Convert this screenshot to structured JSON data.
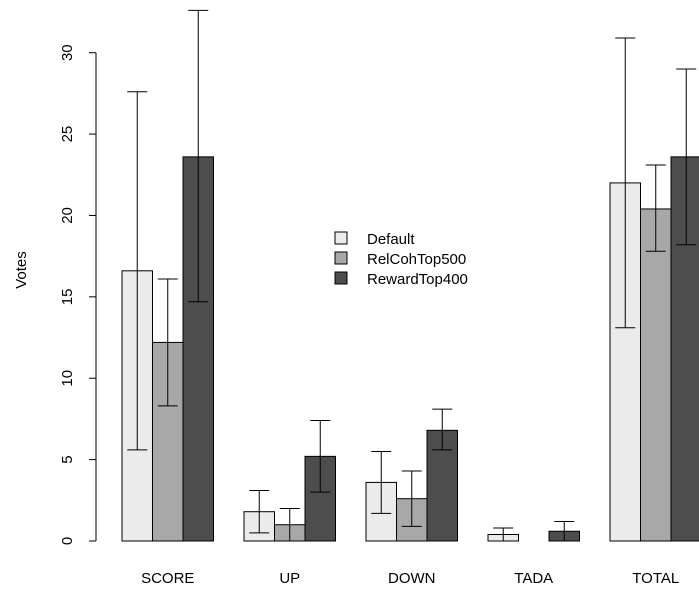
{
  "chart_data": {
    "type": "bar",
    "title": "",
    "xlabel": "",
    "ylabel": "Votes",
    "ylim": [
      0,
      32.5
    ],
    "yticks": [
      0,
      5,
      10,
      15,
      20,
      25,
      30
    ],
    "categories": [
      "SCORE",
      "UP",
      "DOWN",
      "TADA",
      "TOTAL"
    ],
    "series": [
      {
        "name": "Default",
        "color": "#ebebeb",
        "values": [
          16.6,
          1.8,
          3.6,
          0.4,
          22.0
        ],
        "err_low": [
          5.6,
          0.5,
          1.7,
          0.0,
          13.1
        ],
        "err_high": [
          27.6,
          3.1,
          5.5,
          0.8,
          30.9
        ]
      },
      {
        "name": "RelCohTop500",
        "color": "#a8a8a8",
        "values": [
          12.2,
          1.0,
          2.6,
          0.0,
          20.4
        ],
        "err_low": [
          8.3,
          0.0,
          0.9,
          0.0,
          17.8
        ],
        "err_high": [
          16.1,
          2.0,
          4.3,
          0.0,
          23.1
        ]
      },
      {
        "name": "RewardTop400",
        "color": "#4d4d4d",
        "values": [
          23.6,
          5.2,
          6.8,
          0.6,
          23.6
        ],
        "err_low": [
          14.7,
          3.0,
          5.6,
          0.0,
          18.2
        ],
        "err_high": [
          32.6,
          7.4,
          8.1,
          1.2,
          29.0
        ]
      }
    ],
    "legend_position": "center",
    "grid": false
  }
}
